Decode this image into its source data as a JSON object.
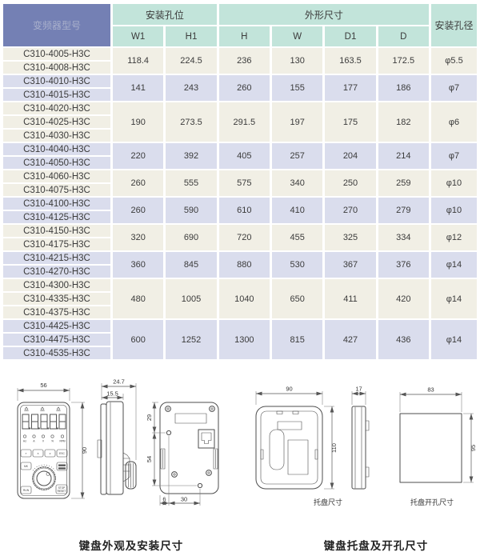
{
  "table": {
    "header": {
      "model_col": "变频器型号",
      "mount_group": "安装孔位",
      "dim_group": "外形尺寸",
      "hole_col": "安装孔径",
      "sub_cols": [
        "W1",
        "H1",
        "H",
        "W",
        "D1",
        "D"
      ]
    },
    "groups": [
      {
        "shade": "cream",
        "models": [
          "C310-4005-H3C",
          "C310-4008-H3C"
        ],
        "values": [
          "118.4",
          "224.5",
          "236",
          "130",
          "163.5",
          "172.5"
        ],
        "hole": "φ5.5"
      },
      {
        "shade": "lav",
        "models": [
          "C310-4010-H3C",
          "C310-4015-H3C"
        ],
        "values": [
          "141",
          "243",
          "260",
          "155",
          "177",
          "186"
        ],
        "hole": "φ7"
      },
      {
        "shade": "cream",
        "models": [
          "C310-4020-H3C",
          "C310-4025-H3C",
          "C310-4030-H3C"
        ],
        "values": [
          "190",
          "273.5",
          "291.5",
          "197",
          "175",
          "182"
        ],
        "hole": "φ6"
      },
      {
        "shade": "lav",
        "models": [
          "C310-4040-H3C",
          "C310-4050-H3C"
        ],
        "values": [
          "220",
          "392",
          "405",
          "257",
          "204",
          "214"
        ],
        "hole": "φ7"
      },
      {
        "shade": "cream",
        "models": [
          "C310-4060-H3C",
          "C310-4075-H3C"
        ],
        "values": [
          "260",
          "555",
          "575",
          "340",
          "250",
          "259"
        ],
        "hole": "φ10"
      },
      {
        "shade": "lav",
        "models": [
          "C310-4100-H3C",
          "C310-4125-H3C"
        ],
        "values": [
          "260",
          "590",
          "610",
          "410",
          "270",
          "279"
        ],
        "hole": "φ10"
      },
      {
        "shade": "cream",
        "models": [
          "C310-4150-H3C",
          "C310-4175-H3C"
        ],
        "values": [
          "320",
          "690",
          "720",
          "455",
          "325",
          "334"
        ],
        "hole": "φ12"
      },
      {
        "shade": "lav",
        "models": [
          "C310-4215-H3C",
          "C310-4270-H3C"
        ],
        "values": [
          "360",
          "845",
          "880",
          "530",
          "367",
          "376"
        ],
        "hole": "φ14"
      },
      {
        "shade": "cream",
        "models": [
          "C310-4300-H3C",
          "C310-4335-H3C",
          "C310-4375-H3C"
        ],
        "values": [
          "480",
          "1005",
          "1040",
          "650",
          "411",
          "420"
        ],
        "hole": "φ14"
      },
      {
        "shade": "lav",
        "models": [
          "C310-4425-H3C",
          "C310-4475-H3C",
          "C310-4535-H3C"
        ],
        "values": [
          "600",
          "1252",
          "1300",
          "815",
          "427",
          "436"
        ],
        "hole": "φ14"
      }
    ]
  },
  "drawings": {
    "caption_left": "键盘外观及安装尺寸",
    "caption_right": "键盘托盘及开孔尺寸",
    "keypad": {
      "dim_w": "56",
      "dim_h": "90",
      "dim_depth": "24.7",
      "dim_body_depth": "15.5",
      "dim_top_hole": "29",
      "dim_hole_span": "54",
      "dim_edge": "6",
      "dim_bottom_hole": "30",
      "led_labels": [
        "Hz",
        "A",
        "V",
        "%",
        "RPM"
      ],
      "btn_shift": "»",
      "btn_up": "∧",
      "btn_down": "∨",
      "btn_esc": "ESC",
      "btn_mk": "MK",
      "btn_run": "RUN",
      "btn_stop": "STOP",
      "btn_reset": "RESET"
    },
    "tray": {
      "dim_w": "90",
      "dim_h": "110",
      "dim_side": "17",
      "caption": "托盘尺寸"
    },
    "cutout": {
      "dim_w": "83",
      "dim_h": "95",
      "caption": "托盘开孔尺寸"
    }
  },
  "colors": {
    "header_blue": "#7480b4",
    "header_mint": "#c2e4da",
    "row_cream": "#f1efe5",
    "row_lavender": "#dadded"
  }
}
